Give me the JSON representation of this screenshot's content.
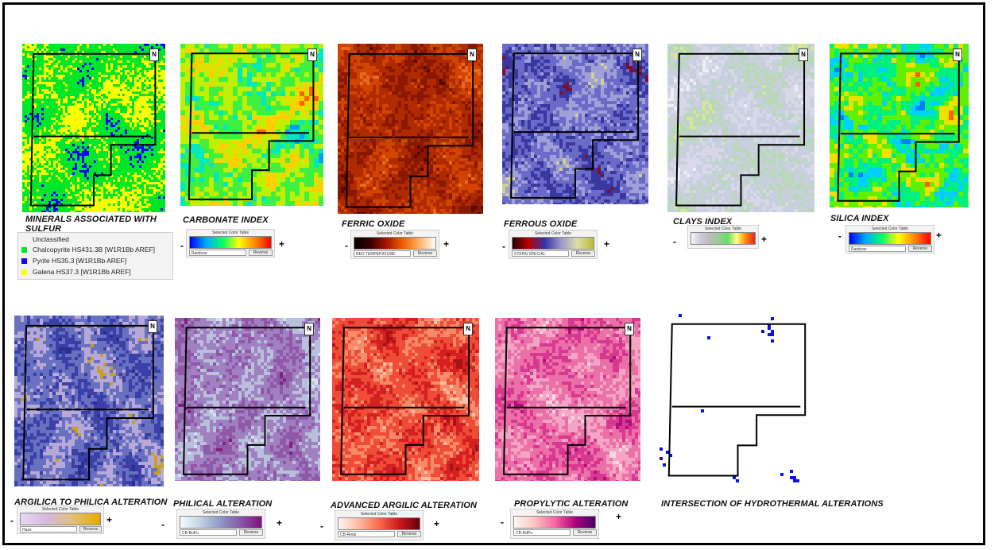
{
  "colors": {
    "green": "#00e62a",
    "blue": "#1400ff",
    "yellow": "#ffff00"
  },
  "maps": [
    {
      "id": "minerals",
      "title": "MINERALS ASSOCIATED WITH SULFUR",
      "style": "minerals",
      "north": "N"
    },
    {
      "id": "carbonate",
      "title": "CARBONATE INDEX",
      "style": "rainbow",
      "north": "N"
    },
    {
      "id": "ferric",
      "title": "FERRIC OXIDE",
      "style": "ferric",
      "north": "N"
    },
    {
      "id": "ferrous",
      "title": "FERROUS OXIDE",
      "style": "ferrous",
      "north": "N"
    },
    {
      "id": "clays",
      "title": "CLAYS INDEX",
      "style": "clays",
      "north": "N"
    },
    {
      "id": "silica",
      "title": "SILICA INDEX",
      "style": "rainbow2",
      "north": "N"
    },
    {
      "id": "argilica",
      "title": "ARGILICA TO PHILICA ALTERATION",
      "style": "argilica",
      "north": "N"
    },
    {
      "id": "philical",
      "title": "PHILICAL ALTERATION",
      "style": "philical",
      "north": "N"
    },
    {
      "id": "advanced",
      "title": "ADVANCED ARGILIC ALTERATION",
      "style": "advanced",
      "north": "N"
    },
    {
      "id": "propylytic",
      "title": "PROPYLYTIC ALTERATION",
      "style": "propylytic",
      "north": "N"
    },
    {
      "id": "intersection",
      "title": "INTERSECTION OF HYDROTHERMAL ALTERATIONS",
      "style": "intersection",
      "north": ""
    }
  ],
  "legend": {
    "items": [
      {
        "label": "Unclassified",
        "color": ""
      },
      {
        "label": "Chalcopyrite HS431.3B [W1R1Bb AREF]",
        "color": "#00e62a"
      },
      {
        "label": "Pyrite HS35.3 [W1R1Bb AREF]",
        "color": "#1400ff"
      },
      {
        "label": "Galena HS37.3 [W1R1Bb AREF]",
        "color": "#ffff00"
      }
    ]
  },
  "color_tables": {
    "caption": "Selected Color Table",
    "reverse": "Reverse",
    "minus": "-",
    "plus": "+",
    "carbonate": {
      "name": "Rainbow"
    },
    "ferric": {
      "name": "RED TEMPERATURE"
    },
    "ferrous": {
      "name": "STERN SPECIAL"
    },
    "clays": {
      "name": ""
    },
    "silica": {
      "name": "Rainbow"
    },
    "argilica": {
      "name": "Haze"
    },
    "philical": {
      "name": "CB-BuPu"
    },
    "advanced": {
      "name": "CB-Reds"
    },
    "propylytic": {
      "name": "CB-RdPu"
    }
  }
}
